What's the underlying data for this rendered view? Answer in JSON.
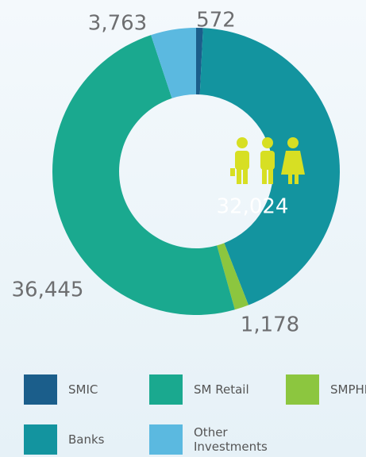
{
  "chart_data": {
    "type": "pie",
    "categories": [
      "SMIC",
      "Banks",
      "SMPHI",
      "SM Retail",
      "Other Investments"
    ],
    "values": [
      572,
      32024,
      1178,
      36445,
      3763
    ],
    "value_labels": [
      "572",
      "32,024",
      "1,178",
      "36,445",
      "3,763"
    ],
    "colors": [
      "#1b5e8b",
      "#13949f",
      "#8cc63f",
      "#1aa98f",
      "#5bb9e0"
    ],
    "donut": true
  }
}
